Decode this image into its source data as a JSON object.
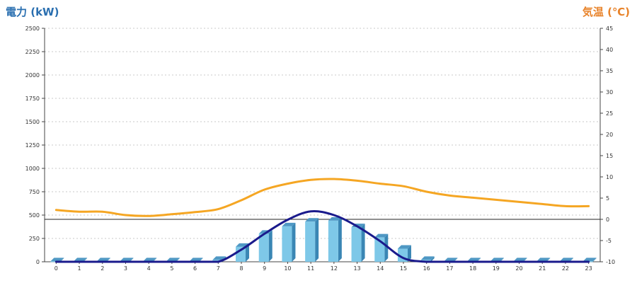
{
  "chart_data": {
    "type": "bar",
    "left_axis_title": "電力 (kW)",
    "right_axis_title": "気温 (℃)",
    "categories": [
      "0",
      "1",
      "2",
      "3",
      "4",
      "5",
      "6",
      "7",
      "8",
      "9",
      "10",
      "11",
      "12",
      "13",
      "14",
      "15",
      "16",
      "17",
      "18",
      "19",
      "20",
      "21",
      "22",
      "23"
    ],
    "left_ylim": [
      0,
      2500
    ],
    "left_ticks": [
      0,
      250,
      500,
      750,
      1000,
      1250,
      1500,
      1750,
      2000,
      2250,
      2500
    ],
    "right_ylim": [
      -10,
      45
    ],
    "right_ticks": [
      -10,
      -5,
      0,
      5,
      10,
      15,
      20,
      25,
      30,
      35,
      40,
      45
    ],
    "reference_line_temp": 0,
    "grid": "horizontal dotted",
    "series": [
      {
        "type": "bar",
        "axis": "left",
        "color": "#7ec8e8",
        "values": [
          5,
          5,
          5,
          5,
          5,
          5,
          5,
          20,
          160,
          300,
          380,
          430,
          440,
          370,
          260,
          140,
          20,
          5,
          5,
          5,
          5,
          5,
          5,
          5
        ]
      },
      {
        "type": "line",
        "axis": "left",
        "color": "#1a1a8c",
        "values": [
          0,
          0,
          0,
          0,
          0,
          0,
          0,
          0,
          130,
          300,
          450,
          540,
          500,
          380,
          220,
          40,
          0,
          0,
          0,
          0,
          0,
          0,
          0,
          0
        ]
      },
      {
        "type": "line",
        "axis": "right",
        "color": "#f5a623",
        "values": [
          2.2,
          1.8,
          1.8,
          1.0,
          0.8,
          1.2,
          1.7,
          2.4,
          4.5,
          7.0,
          8.4,
          9.3,
          9.5,
          9.1,
          8.4,
          7.8,
          6.5,
          5.6,
          5.1,
          4.6,
          4.1,
          3.6,
          3.1,
          3.1
        ]
      }
    ]
  }
}
